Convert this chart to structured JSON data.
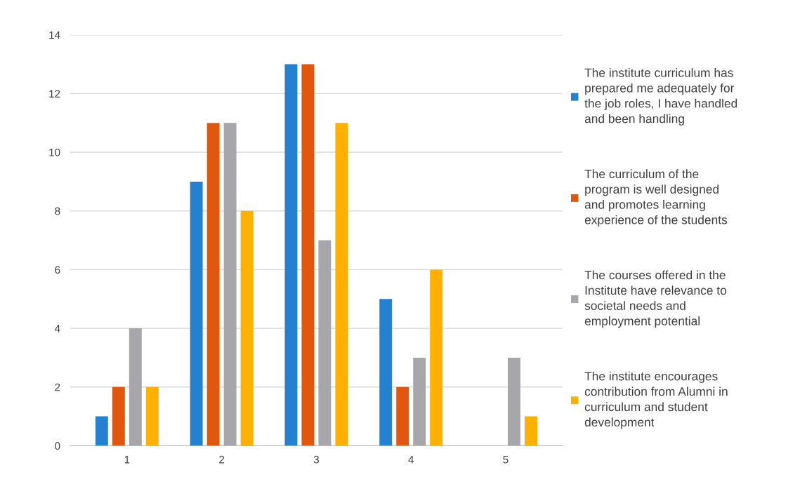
{
  "chart_data": {
    "type": "bar",
    "categories": [
      "1",
      "2",
      "3",
      "4",
      "5"
    ],
    "series": [
      {
        "name": "The institute curriculum has\nprepared me adequately for\nthe job roles, I have handled\nand been handling",
        "color": "#2381d0",
        "values": [
          1,
          9,
          13,
          5,
          0
        ]
      },
      {
        "name": "The curriculum of the\nprogram is well designed\nand promotes learning\nexperience of the students",
        "color": "#e2570e",
        "values": [
          2,
          11,
          13,
          2,
          0
        ]
      },
      {
        "name": "The courses offered in the\nInstitute have relevance to\nsocietal needs and\nemployment potential",
        "color": "#a6a6ab",
        "values": [
          4,
          11,
          7,
          3,
          3
        ]
      },
      {
        "name": "The institute encourages\ncontribution from Alumni in\ncurriculum and student\ndevelopment",
        "color": "#ffb000",
        "values": [
          2,
          8,
          11,
          6,
          1
        ]
      }
    ],
    "ylim": [
      0,
      14
    ],
    "yticks": [
      0,
      2,
      4,
      6,
      8,
      10,
      12,
      14
    ],
    "grid": "y",
    "legend": "right"
  }
}
